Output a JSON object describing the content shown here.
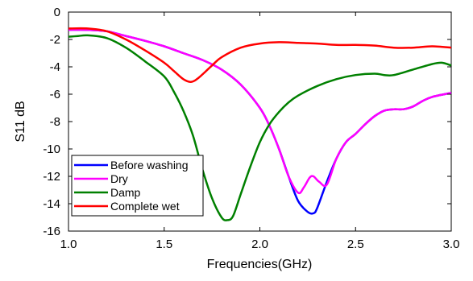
{
  "chart_data": {
    "type": "line",
    "title": "",
    "xlabel": "Frequencies(GHz)",
    "ylabel": "S11 dB",
    "xlim": [
      1.0,
      3.0
    ],
    "ylim": [
      -16,
      0
    ],
    "x_ticks": [
      "1.0",
      "1.5",
      "2.0",
      "2.5",
      "3.0"
    ],
    "y_ticks": [
      "0",
      "-2",
      "-4",
      "-6",
      "-8",
      "-10",
      "-12",
      "-14",
      "-16"
    ],
    "grid": false,
    "legend_position": "bottom-left",
    "series": [
      {
        "name": "Before washing",
        "color": "#0000ff",
        "points": [
          [
            1.0,
            -1.3
          ],
          [
            1.1,
            -1.3
          ],
          [
            1.2,
            -1.4
          ],
          [
            1.3,
            -1.75
          ],
          [
            1.4,
            -2.1
          ],
          [
            1.5,
            -2.5
          ],
          [
            1.6,
            -3.0
          ],
          [
            1.7,
            -3.5
          ],
          [
            1.8,
            -4.2
          ],
          [
            1.9,
            -5.3
          ],
          [
            2.0,
            -7.0
          ],
          [
            2.05,
            -8.3
          ],
          [
            2.1,
            -10.0
          ],
          [
            2.15,
            -12.0
          ],
          [
            2.2,
            -13.8
          ],
          [
            2.25,
            -14.6
          ],
          [
            2.28,
            -14.7
          ],
          [
            2.3,
            -14.3
          ],
          [
            2.35,
            -12.4
          ],
          [
            2.4,
            -10.7
          ],
          [
            2.45,
            -9.5
          ],
          [
            2.5,
            -8.9
          ],
          [
            2.55,
            -8.2
          ],
          [
            2.6,
            -7.6
          ],
          [
            2.65,
            -7.2
          ],
          [
            2.7,
            -7.1
          ],
          [
            2.75,
            -7.1
          ],
          [
            2.8,
            -6.9
          ],
          [
            2.85,
            -6.5
          ],
          [
            2.9,
            -6.2
          ],
          [
            3.0,
            -5.9
          ]
        ]
      },
      {
        "name": "Dry",
        "color": "#ff00ff",
        "points": [
          [
            1.0,
            -1.3
          ],
          [
            1.1,
            -1.3
          ],
          [
            1.2,
            -1.4
          ],
          [
            1.3,
            -1.75
          ],
          [
            1.4,
            -2.1
          ],
          [
            1.5,
            -2.5
          ],
          [
            1.6,
            -3.0
          ],
          [
            1.7,
            -3.5
          ],
          [
            1.8,
            -4.2
          ],
          [
            1.9,
            -5.3
          ],
          [
            2.0,
            -7.0
          ],
          [
            2.05,
            -8.3
          ],
          [
            2.1,
            -10.0
          ],
          [
            2.15,
            -12.0
          ],
          [
            2.2,
            -13.2
          ],
          [
            2.23,
            -12.8
          ],
          [
            2.26,
            -12.1
          ],
          [
            2.28,
            -12.0
          ],
          [
            2.31,
            -12.4
          ],
          [
            2.35,
            -12.6
          ],
          [
            2.4,
            -10.7
          ],
          [
            2.45,
            -9.5
          ],
          [
            2.5,
            -8.9
          ],
          [
            2.55,
            -8.2
          ],
          [
            2.6,
            -7.6
          ],
          [
            2.65,
            -7.2
          ],
          [
            2.7,
            -7.1
          ],
          [
            2.75,
            -7.1
          ],
          [
            2.8,
            -6.9
          ],
          [
            2.85,
            -6.5
          ],
          [
            2.9,
            -6.2
          ],
          [
            3.0,
            -5.9
          ]
        ]
      },
      {
        "name": "Damp",
        "color": "#008000",
        "points": [
          [
            1.0,
            -1.8
          ],
          [
            1.05,
            -1.75
          ],
          [
            1.1,
            -1.7
          ],
          [
            1.2,
            -1.9
          ],
          [
            1.3,
            -2.6
          ],
          [
            1.4,
            -3.6
          ],
          [
            1.5,
            -4.7
          ],
          [
            1.55,
            -5.8
          ],
          [
            1.6,
            -7.2
          ],
          [
            1.65,
            -9.0
          ],
          [
            1.7,
            -11.5
          ],
          [
            1.75,
            -13.6
          ],
          [
            1.8,
            -15.0
          ],
          [
            1.83,
            -15.2
          ],
          [
            1.86,
            -14.9
          ],
          [
            1.9,
            -13.3
          ],
          [
            1.95,
            -11.3
          ],
          [
            2.0,
            -9.5
          ],
          [
            2.05,
            -8.2
          ],
          [
            2.1,
            -7.3
          ],
          [
            2.15,
            -6.6
          ],
          [
            2.2,
            -6.1
          ],
          [
            2.3,
            -5.4
          ],
          [
            2.4,
            -4.9
          ],
          [
            2.5,
            -4.6
          ],
          [
            2.6,
            -4.5
          ],
          [
            2.65,
            -4.6
          ],
          [
            2.7,
            -4.6
          ],
          [
            2.8,
            -4.2
          ],
          [
            2.9,
            -3.8
          ],
          [
            2.95,
            -3.7
          ],
          [
            3.0,
            -3.9
          ]
        ]
      },
      {
        "name": "Complete wet",
        "color": "#ff0000",
        "points": [
          [
            1.0,
            -1.2
          ],
          [
            1.1,
            -1.2
          ],
          [
            1.2,
            -1.4
          ],
          [
            1.3,
            -2.0
          ],
          [
            1.4,
            -2.8
          ],
          [
            1.5,
            -3.7
          ],
          [
            1.55,
            -4.3
          ],
          [
            1.6,
            -4.9
          ],
          [
            1.64,
            -5.1
          ],
          [
            1.68,
            -4.8
          ],
          [
            1.75,
            -3.9
          ],
          [
            1.8,
            -3.3
          ],
          [
            1.9,
            -2.6
          ],
          [
            2.0,
            -2.3
          ],
          [
            2.1,
            -2.2
          ],
          [
            2.2,
            -2.25
          ],
          [
            2.3,
            -2.3
          ],
          [
            2.4,
            -2.4
          ],
          [
            2.5,
            -2.4
          ],
          [
            2.6,
            -2.45
          ],
          [
            2.7,
            -2.6
          ],
          [
            2.8,
            -2.6
          ],
          [
            2.9,
            -2.5
          ],
          [
            3.0,
            -2.6
          ]
        ]
      }
    ]
  }
}
